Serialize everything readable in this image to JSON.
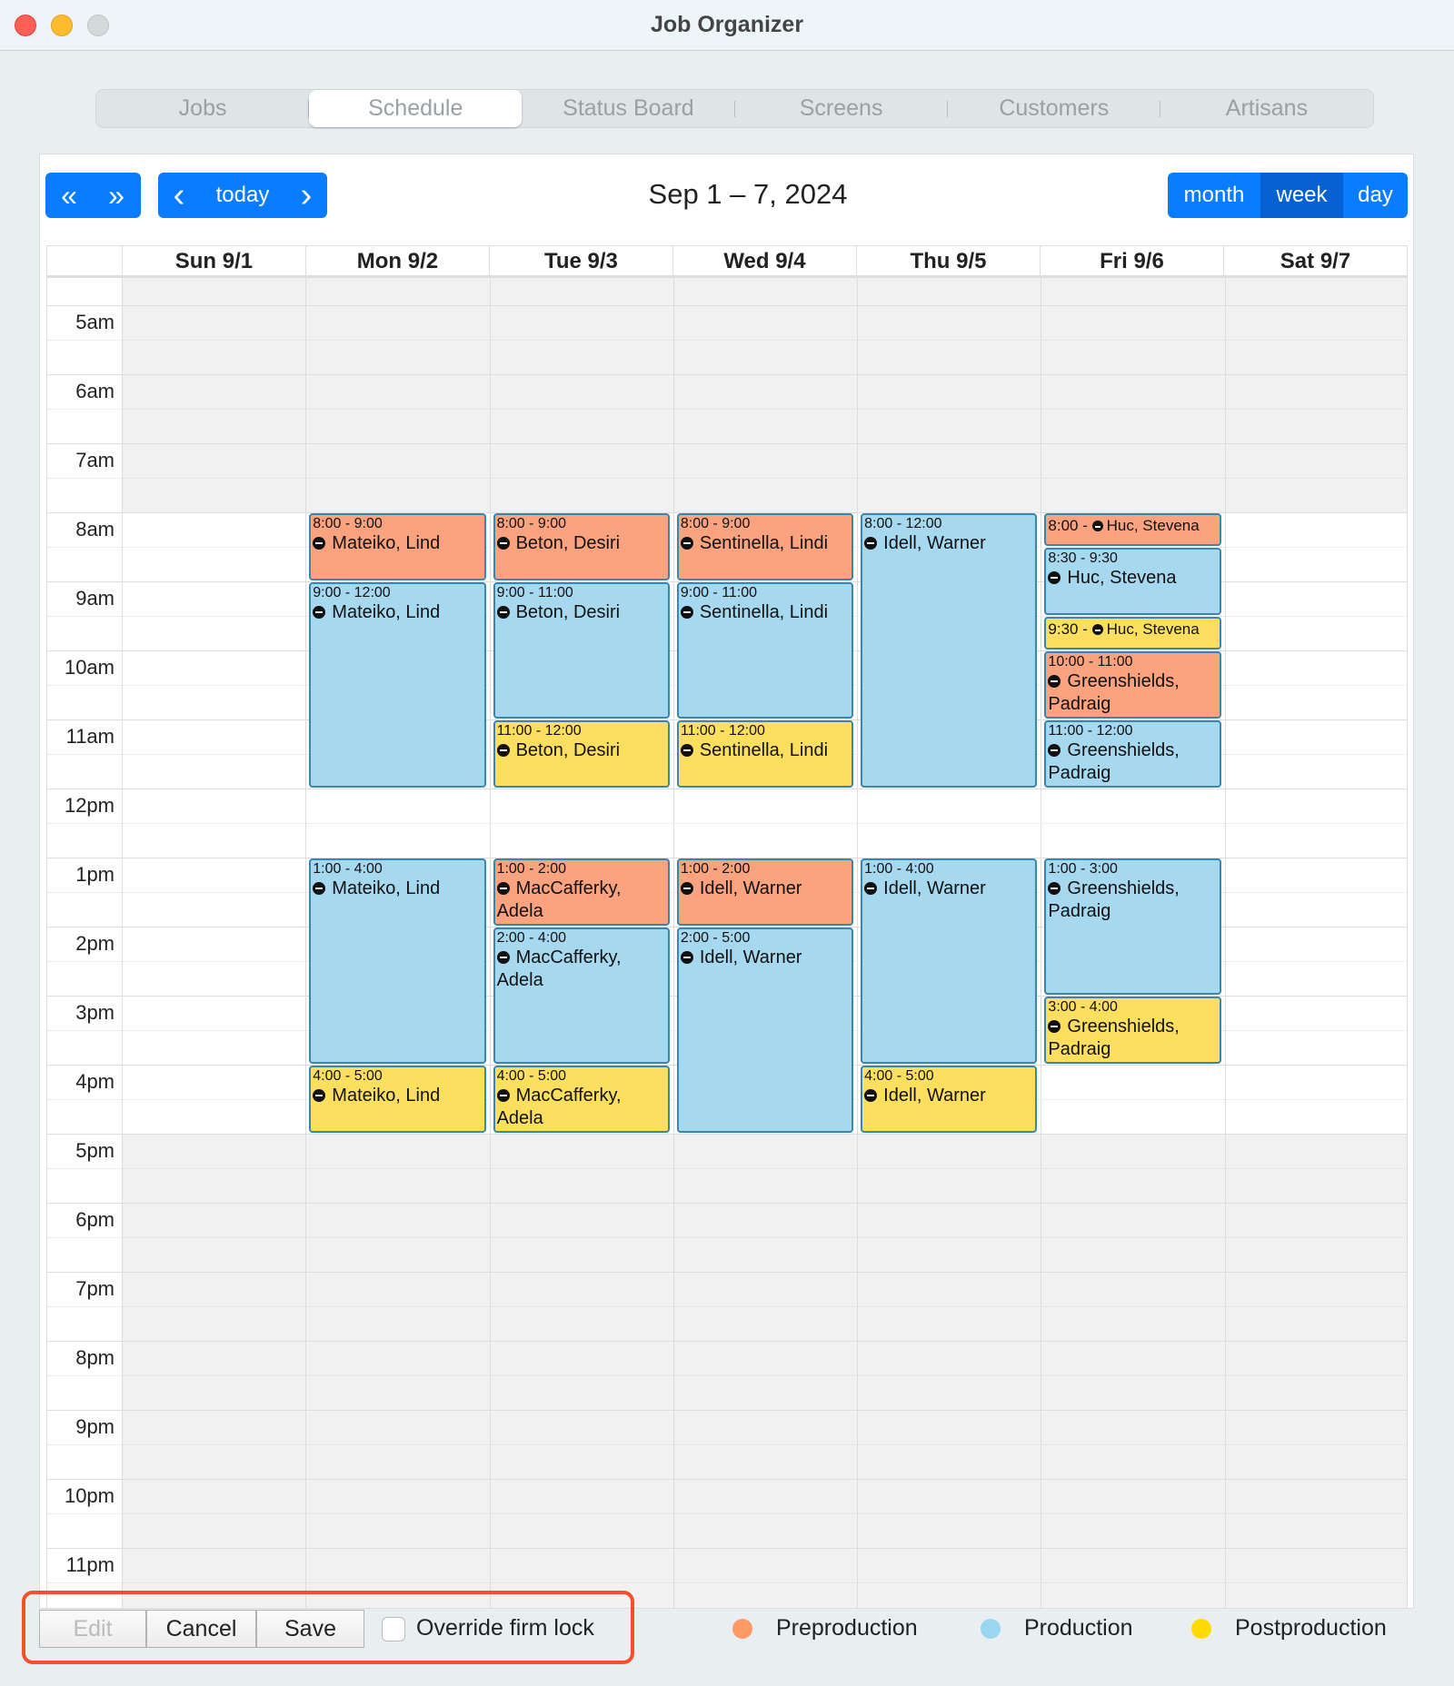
{
  "window": {
    "title": "Job Organizer"
  },
  "tabs": [
    {
      "label": "Jobs"
    },
    {
      "label": "Schedule",
      "active": true
    },
    {
      "label": "Status Board"
    },
    {
      "label": "Screens"
    },
    {
      "label": "Customers"
    },
    {
      "label": "Artisans"
    }
  ],
  "toolbar": {
    "prev_year": "«",
    "next_year": "»",
    "prev": "‹",
    "today": "today",
    "next": "›",
    "title": "Sep 1 – 7, 2024",
    "views": [
      "month",
      "week",
      "day"
    ],
    "active_view": "week"
  },
  "days": [
    "Sun 9/1",
    "Mon 9/2",
    "Tue 9/3",
    "Wed 9/4",
    "Thu 9/5",
    "Fri 9/6",
    "Sat 9/7"
  ],
  "hours": [
    "5am",
    "6am",
    "7am",
    "8am",
    "9am",
    "10am",
    "11am",
    "12pm",
    "1pm",
    "2pm",
    "3pm",
    "4pm",
    "5pm",
    "6pm",
    "7pm",
    "8pm",
    "9pm",
    "10pm",
    "11pm"
  ],
  "colors": {
    "Preproduction": "#fba27f",
    "Production": "#a6d8ef",
    "Postproduction": "#fddf5f",
    "accent": "#0a7cff",
    "highlight": "#f4502a"
  },
  "events": [
    {
      "day": 1,
      "start": 8,
      "end": 9,
      "phase": "Preproduction",
      "time": "8:00 - 9:00",
      "name": "Mateiko, Lind"
    },
    {
      "day": 1,
      "start": 9,
      "end": 12,
      "phase": "Production",
      "time": "9:00 - 12:00",
      "name": "Mateiko, Lind"
    },
    {
      "day": 1,
      "start": 13,
      "end": 16,
      "phase": "Production",
      "time": "1:00 - 4:00",
      "name": "Mateiko, Lind"
    },
    {
      "day": 1,
      "start": 16,
      "end": 17,
      "phase": "Postproduction",
      "time": "4:00 - 5:00",
      "name": "Mateiko, Lind"
    },
    {
      "day": 2,
      "start": 8,
      "end": 9,
      "phase": "Preproduction",
      "time": "8:00 - 9:00",
      "name": "Beton, Desiri"
    },
    {
      "day": 2,
      "start": 9,
      "end": 11,
      "phase": "Production",
      "time": "9:00 - 11:00",
      "name": "Beton, Desiri"
    },
    {
      "day": 2,
      "start": 11,
      "end": 12,
      "phase": "Postproduction",
      "time": "11:00 - 12:00",
      "name": "Beton, Desiri"
    },
    {
      "day": 2,
      "start": 13,
      "end": 14,
      "phase": "Preproduction",
      "time": "1:00 - 2:00",
      "name": "MacCafferky, Adela"
    },
    {
      "day": 2,
      "start": 14,
      "end": 16,
      "phase": "Production",
      "time": "2:00 - 4:00",
      "name": "MacCafferky, Adela"
    },
    {
      "day": 2,
      "start": 16,
      "end": 17,
      "phase": "Postproduction",
      "time": "4:00 - 5:00",
      "name": "MacCafferky, Adela"
    },
    {
      "day": 3,
      "start": 8,
      "end": 9,
      "phase": "Preproduction",
      "time": "8:00 - 9:00",
      "name": "Sentinella, Lindi"
    },
    {
      "day": 3,
      "start": 9,
      "end": 11,
      "phase": "Production",
      "time": "9:00 - 11:00",
      "name": "Sentinella, Lindi"
    },
    {
      "day": 3,
      "start": 11,
      "end": 12,
      "phase": "Postproduction",
      "time": "11:00 - 12:00",
      "name": "Sentinella, Lindi"
    },
    {
      "day": 3,
      "start": 13,
      "end": 14,
      "phase": "Preproduction",
      "time": "1:00 - 2:00",
      "name": "Idell, Warner"
    },
    {
      "day": 3,
      "start": 14,
      "end": 17,
      "phase": "Production",
      "time": "2:00 - 5:00",
      "name": "Idell, Warner"
    },
    {
      "day": 4,
      "start": 8,
      "end": 12,
      "phase": "Production",
      "time": "8:00 - 12:00",
      "name": "Idell, Warner"
    },
    {
      "day": 4,
      "start": 13,
      "end": 16,
      "phase": "Production",
      "time": "1:00 - 4:00",
      "name": "Idell, Warner"
    },
    {
      "day": 4,
      "start": 16,
      "end": 17,
      "phase": "Postproduction",
      "time": "4:00 - 5:00",
      "name": "Idell, Warner"
    },
    {
      "day": 5,
      "start": 8,
      "end": 8.5,
      "phase": "Preproduction",
      "time": "8:00 - ",
      "name": "Huc, Stevena"
    },
    {
      "day": 5,
      "start": 8.5,
      "end": 9.5,
      "phase": "Production",
      "time": "8:30 - 9:30",
      "name": "Huc, Stevena"
    },
    {
      "day": 5,
      "start": 9.5,
      "end": 10,
      "phase": "Postproduction",
      "time": "9:30 - ",
      "name": "Huc, Stevena"
    },
    {
      "day": 5,
      "start": 10,
      "end": 11,
      "phase": "Preproduction",
      "time": "10:00 - 11:00",
      "name": "Greenshields, Padraig"
    },
    {
      "day": 5,
      "start": 11,
      "end": 12,
      "phase": "Production",
      "time": "11:00 - 12:00",
      "name": "Greenshields, Padraig"
    },
    {
      "day": 5,
      "start": 13,
      "end": 15,
      "phase": "Production",
      "time": "1:00 - 3:00",
      "name": "Greenshields, Padraig"
    },
    {
      "day": 5,
      "start": 15,
      "end": 16,
      "phase": "Postproduction",
      "time": "3:00 - 4:00",
      "name": "Greenshields, Padraig"
    }
  ],
  "footer": {
    "edit": "Edit",
    "cancel": "Cancel",
    "save": "Save",
    "override_label": "Override firm lock",
    "override_checked": false
  },
  "legend": [
    {
      "label": "Preproduction",
      "color": "#ff9966"
    },
    {
      "label": "Production",
      "color": "#99d6f0"
    },
    {
      "label": "Postproduction",
      "color": "#ffdb00"
    }
  ]
}
